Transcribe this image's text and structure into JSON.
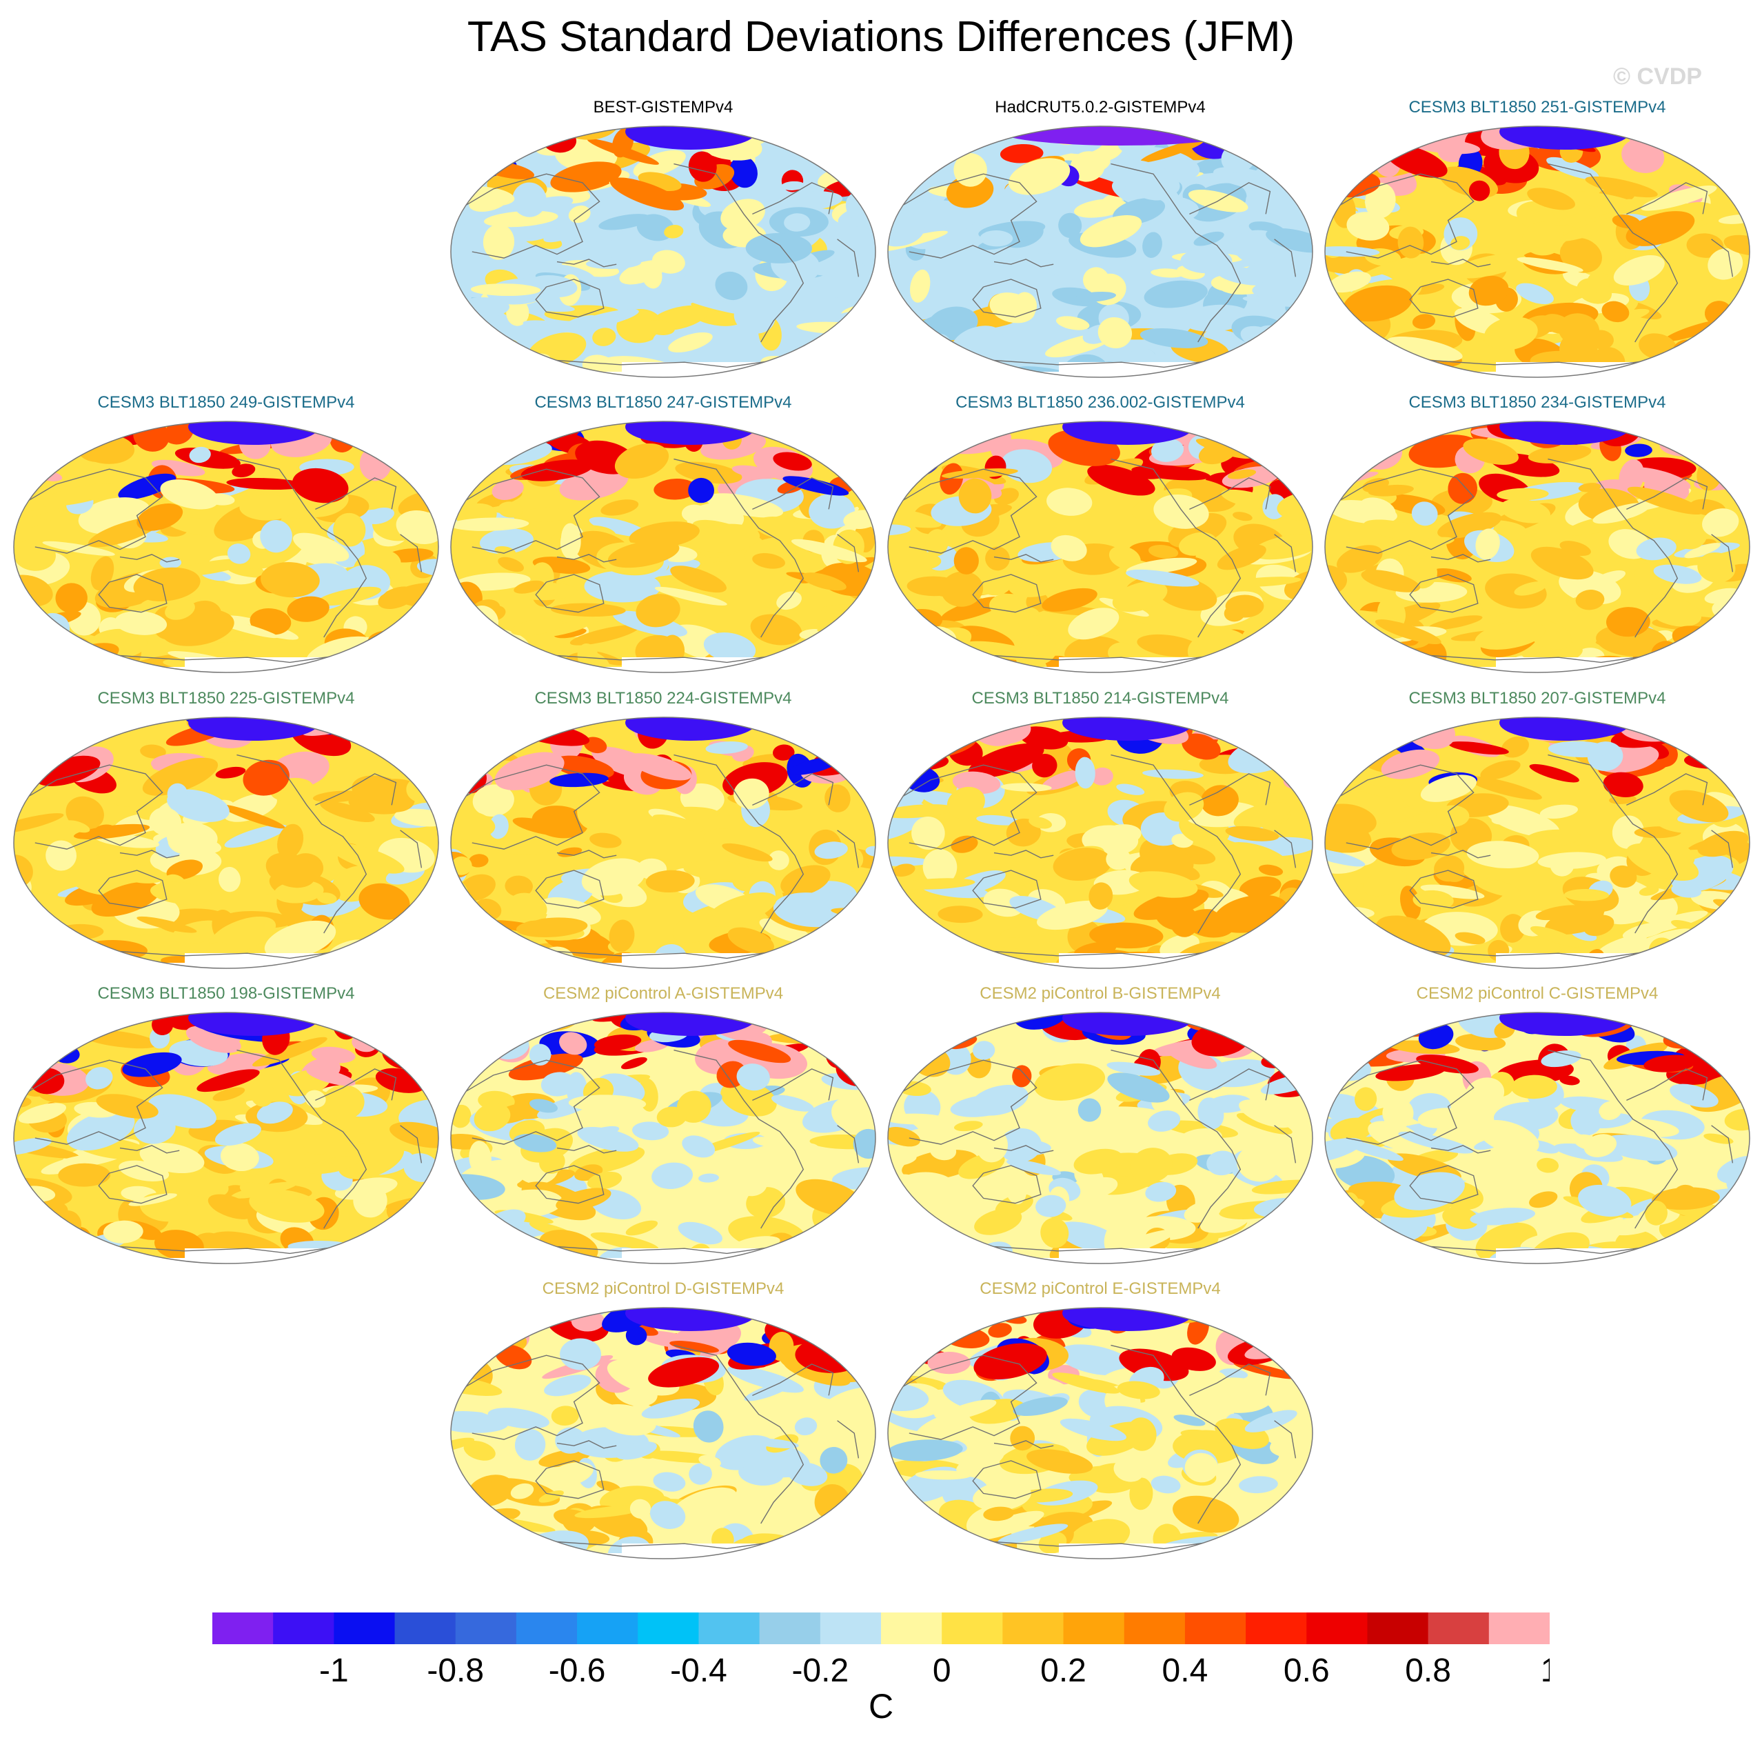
{
  "title": "TAS Standard Deviations Differences (JFM)",
  "watermark": "© CVDP",
  "colors": {
    "obs_title": "#000000",
    "cesm3_title_a": "#1b6c8a",
    "cesm3_title_b": "#4d8a5e",
    "cesm2_title": "#c9b45a",
    "coastline": "#707070",
    "no_data": "#ffffff"
  },
  "panels": [
    {
      "label": "BEST-GISTEMPv4",
      "group": "obs",
      "style": "best"
    },
    {
      "label": "HadCRUT5.0.2-GISTEMPv4",
      "group": "obs",
      "style": "had"
    },
    {
      "label": "CESM3 BLT1850 251-GISTEMPv4",
      "group": "cesm3a",
      "style": "model_warm"
    },
    {
      "label": "CESM3 BLT1850 249-GISTEMPv4",
      "group": "cesm3a",
      "style": "model_warm"
    },
    {
      "label": "CESM3 BLT1850 247-GISTEMPv4",
      "group": "cesm3a",
      "style": "model_warm"
    },
    {
      "label": "CESM3 BLT1850 236.002-GISTEMPv4",
      "group": "cesm3a",
      "style": "model_warm"
    },
    {
      "label": "CESM3 BLT1850 234-GISTEMPv4",
      "group": "cesm3a",
      "style": "model_warm"
    },
    {
      "label": "CESM3 BLT1850 225-GISTEMPv4",
      "group": "cesm3b",
      "style": "model_warm"
    },
    {
      "label": "CESM3 BLT1850 224-GISTEMPv4",
      "group": "cesm3b",
      "style": "model_warm"
    },
    {
      "label": "CESM3 BLT1850 214-GISTEMPv4",
      "group": "cesm3b",
      "style": "model_warm"
    },
    {
      "label": "CESM3 BLT1850 207-GISTEMPv4",
      "group": "cesm3b",
      "style": "model_warm"
    },
    {
      "label": "CESM3 BLT1850 198-GISTEMPv4",
      "group": "cesm3b",
      "style": "model_warm"
    },
    {
      "label": "CESM2 piControl A-GISTEMPv4",
      "group": "cesm2",
      "style": "model_mixed"
    },
    {
      "label": "CESM2 piControl B-GISTEMPv4",
      "group": "cesm2",
      "style": "model_mixed"
    },
    {
      "label": "CESM2 piControl C-GISTEMPv4",
      "group": "cesm2",
      "style": "model_mixed"
    },
    {
      "label": "CESM2 piControl D-GISTEMPv4",
      "group": "cesm2",
      "style": "model_mixed"
    },
    {
      "label": "CESM2 piControl E-GISTEMPv4",
      "group": "cesm2",
      "style": "model_mixed"
    }
  ],
  "colorbar": {
    "units": "C",
    "colors": [
      "#7f20f0",
      "#3d10f5",
      "#0a0ff2",
      "#2a4fd8",
      "#3669dd",
      "#2a86ee",
      "#16a2f5",
      "#00c2f7",
      "#52c3f0",
      "#97cfea",
      "#bde3f5",
      "#fff8a0",
      "#ffe245",
      "#ffc424",
      "#ffa40a",
      "#ff7c00",
      "#ff5000",
      "#ff1f00",
      "#ee0000",
      "#c80000",
      "#d84040",
      "#ffaeb3"
    ],
    "tick_labels": [
      "-1",
      "-0.8",
      "-0.6",
      "-0.4",
      "-0.2",
      "0",
      "0.2",
      "0.4",
      "0.6",
      "0.8",
      "1"
    ]
  }
}
